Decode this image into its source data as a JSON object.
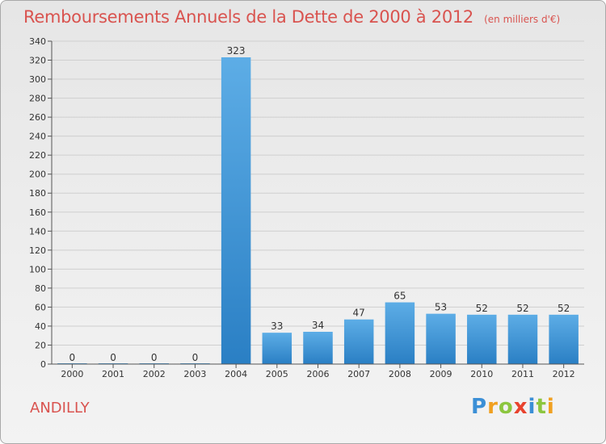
{
  "title": "Remboursements Annuels de la Dette de 2000 à 2012",
  "unit": "(en milliers d'€)",
  "commune": "ANDILLY",
  "logo": "Proxiti",
  "colors": {
    "title": "#d9534f",
    "bar_top": "#5dade6",
    "bar_bottom": "#2a7fc4",
    "grid": "#cfcfcf"
  },
  "chart_data": {
    "type": "bar",
    "title": "Remboursements Annuels de la Dette de 2000 à 2012",
    "subtitle": "(en milliers d'€)",
    "categories": [
      "2000",
      "2001",
      "2002",
      "2003",
      "2004",
      "2005",
      "2006",
      "2007",
      "2008",
      "2009",
      "2010",
      "2011",
      "2012"
    ],
    "values": [
      0,
      0,
      0,
      0,
      323,
      33,
      34,
      47,
      65,
      53,
      52,
      52,
      52
    ],
    "data_labels": [
      "0",
      "0",
      "0",
      "0",
      "323",
      "33",
      "34",
      "47",
      "65",
      "53",
      "52",
      "52",
      "52"
    ],
    "ylim": [
      0,
      340
    ],
    "yticks": [
      0,
      20,
      40,
      60,
      80,
      100,
      120,
      140,
      160,
      180,
      200,
      220,
      240,
      260,
      280,
      300,
      320,
      340
    ],
    "grid": true,
    "xlabel": "",
    "ylabel": ""
  }
}
